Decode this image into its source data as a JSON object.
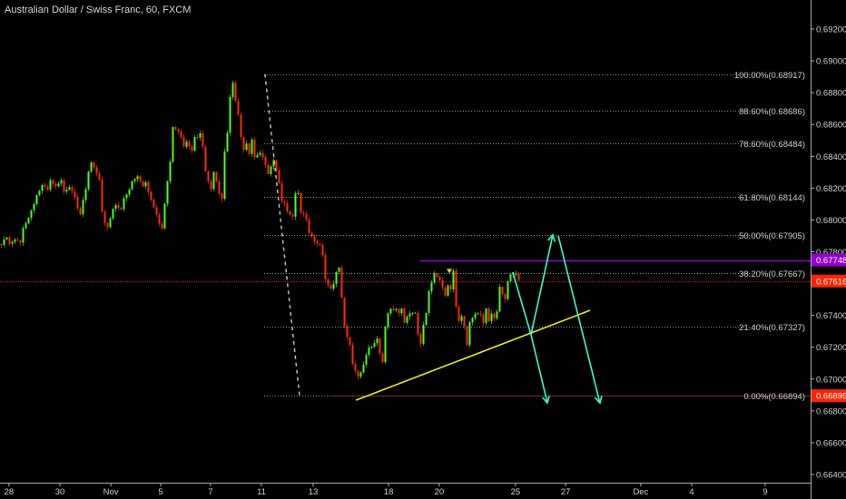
{
  "header": {
    "title": "Australian Dollar / Swiss Franc, 60, FXCM"
  },
  "colors": {
    "background": "#000000",
    "up": "#4cff1a",
    "down": "#ff2a00",
    "axis": "#b0b0b0",
    "axis_text": "#d0d0d0",
    "fib": "#8c8c8c",
    "current_price": "#ff2200",
    "resistance": "#9500d0",
    "trendline": "#f2f200",
    "projection": "#33ffc4",
    "dashed_swing": "#bdbdbd"
  },
  "chart_data": {
    "type": "candlestick",
    "symbol": "Australian Dollar / Swiss Franc",
    "interval": "60",
    "source": "FXCM",
    "y_range": [
      0.6634,
      0.6937
    ],
    "bar_range": [
      0,
      296
    ],
    "y_ticks": [
      "0.69200",
      "0.69000",
      "0.68800",
      "0.68600",
      "0.68400",
      "0.68200",
      "0.68000",
      "0.67800",
      "0.67400",
      "0.67200",
      "0.67000",
      "0.66800",
      "0.66600",
      "0.66400"
    ],
    "x_ticks": [
      {
        "label": "28",
        "bar": 3.3
      },
      {
        "label": "30",
        "bar": 22
      },
      {
        "label": "Nov",
        "bar": 40.7
      },
      {
        "label": "5",
        "bar": 59
      },
      {
        "label": "7",
        "bar": 77.3
      },
      {
        "label": "11",
        "bar": 96
      },
      {
        "label": "13",
        "bar": 115
      },
      {
        "label": "18",
        "bar": 142.7
      },
      {
        "label": "20",
        "bar": 161.3
      },
      {
        "label": "25",
        "bar": 189.3
      },
      {
        "label": "27",
        "bar": 207.7
      },
      {
        "label": "Dec",
        "bar": 235.3
      },
      {
        "label": "4",
        "bar": 254
      },
      {
        "label": "9",
        "bar": 281
      }
    ],
    "price_path": {
      "bars": [
        0,
        2,
        3,
        5,
        7,
        8,
        10,
        13,
        15,
        17,
        18,
        20,
        22,
        23,
        25,
        27,
        28,
        29,
        31,
        32,
        33,
        34,
        36,
        37,
        38,
        39,
        41,
        42,
        44,
        45,
        47,
        48,
        50,
        52,
        53,
        55,
        57,
        58,
        59,
        61,
        62,
        63,
        65,
        67,
        68,
        70,
        71,
        72,
        73,
        74,
        75,
        77,
        78,
        79,
        80,
        81,
        82,
        83,
        84,
        85,
        86,
        87,
        88,
        89,
        90,
        91,
        92,
        93,
        95,
        97,
        98,
        100,
        102,
        103,
        104,
        105,
        107,
        108,
        109,
        110,
        112,
        113,
        115,
        117,
        118,
        119,
        121,
        122,
        123,
        124,
        125,
        126,
        127,
        128,
        129,
        131,
        132,
        133,
        135,
        137,
        138,
        139,
        140,
        141,
        142,
        143,
        145,
        146,
        147,
        148,
        149,
        151,
        152,
        153,
        154,
        155,
        156,
        157,
        158,
        159,
        160,
        161,
        162,
        163,
        164,
        165,
        166,
        167,
        168,
        169,
        170,
        171,
        172,
        173,
        174,
        176,
        177,
        178,
        179,
        180,
        181,
        182,
        183,
        185,
        186,
        187,
        189,
        190
      ],
      "closes": [
        0.67843,
        0.67889,
        0.67843,
        0.67872,
        0.67855,
        0.67957,
        0.68014,
        0.68157,
        0.68214,
        0.68185,
        0.68242,
        0.68202,
        0.68242,
        0.68185,
        0.68214,
        0.68157,
        0.68083,
        0.68043,
        0.68185,
        0.68299,
        0.68356,
        0.68328,
        0.68242,
        0.68043,
        0.67986,
        0.67957,
        0.68071,
        0.681,
        0.68071,
        0.68128,
        0.68185,
        0.68242,
        0.68271,
        0.68214,
        0.68242,
        0.68128,
        0.68043,
        0.67986,
        0.67957,
        0.68242,
        0.68356,
        0.68584,
        0.68556,
        0.6847,
        0.68499,
        0.68442,
        0.68527,
        0.68527,
        0.68556,
        0.6847,
        0.68299,
        0.68185,
        0.68299,
        0.68242,
        0.68157,
        0.68128,
        0.68442,
        0.68556,
        0.68784,
        0.68869,
        0.68755,
        0.6867,
        0.68527,
        0.68442,
        0.6847,
        0.68413,
        0.68499,
        0.68385,
        0.68413,
        0.68356,
        0.68299,
        0.68385,
        0.68242,
        0.68128,
        0.681,
        0.68043,
        0.68014,
        0.68157,
        0.68157,
        0.68043,
        0.68014,
        0.67929,
        0.67872,
        0.67843,
        0.67786,
        0.67615,
        0.67558,
        0.67587,
        0.67672,
        0.67701,
        0.67501,
        0.6733,
        0.67273,
        0.67216,
        0.67102,
        0.67017,
        0.67045,
        0.67102,
        0.67188,
        0.67216,
        0.67245,
        0.67159,
        0.67102,
        0.6733,
        0.67416,
        0.67444,
        0.67444,
        0.67416,
        0.67444,
        0.67359,
        0.67387,
        0.67416,
        0.67416,
        0.67273,
        0.67216,
        0.6733,
        0.67416,
        0.67558,
        0.67615,
        0.67672,
        0.67644,
        0.67627,
        0.67587,
        0.6753,
        0.67587,
        0.67558,
        0.67672,
        0.67444,
        0.67359,
        0.67387,
        0.6733,
        0.67216,
        0.67359,
        0.67387,
        0.67416,
        0.67416,
        0.67359,
        0.67444,
        0.67359,
        0.67399,
        0.67376,
        0.67416,
        0.6757,
        0.67501,
        0.67615,
        0.67661,
        0.67672,
        0.67627
      ]
    },
    "fib_retracement": {
      "start_bar": 97,
      "levels": [
        {
          "label": "100.00%(0.68917)",
          "price": 0.68917
        },
        {
          "label": "88.60%(0.68686)",
          "price": 0.68686
        },
        {
          "label": "78.60%(0.68484)",
          "price": 0.68484
        },
        {
          "label": "61.80%(0.68144)",
          "price": 0.68144
        },
        {
          "label": "50.00%(0.67905)",
          "price": 0.67905
        },
        {
          "label": "38.20%(0.67667)",
          "price": 0.67667
        },
        {
          "label": "21.40%(0.67327)",
          "price": 0.67327
        },
        {
          "label": "0.00%(0.66894)",
          "price": 0.66894
        }
      ]
    },
    "price_labels": [
      {
        "label": "0.67748",
        "price": 0.67748,
        "color": "#9500d0"
      },
      {
        "label": "0.67616",
        "price": 0.67616,
        "color": "#ff2200"
      },
      {
        "label": "0.66895",
        "price": 0.66895,
        "color": "#ff2200"
      }
    ],
    "horizontal_lines": [
      {
        "name": "current-price-line",
        "price": 0.67616,
        "from_bar": 0,
        "style": "dotted",
        "color": "#b01800"
      },
      {
        "name": "resistance-line",
        "price": 0.67748,
        "from_bar": 154.3,
        "style": "solid",
        "color": "#9500d0"
      }
    ],
    "drawings": [
      {
        "name": "fib-swing-dashed-line",
        "style": "dashed",
        "color": "#bdbdbd",
        "points": [
          [
            97.3,
            0.68917
          ],
          [
            110,
            0.66894
          ]
        ]
      },
      {
        "name": "ascending-trendline",
        "style": "solid",
        "color": "#f2f200",
        "points": [
          [
            130.7,
            0.66867
          ],
          [
            216.7,
            0.67432
          ]
        ]
      },
      {
        "name": "projection-up-arrow",
        "style": "arrow",
        "color": "#33ffc4",
        "points": [
          [
            188.3,
            0.67672
          ],
          [
            195,
            0.67279
          ],
          [
            203,
            0.67906
          ]
        ]
      },
      {
        "name": "projection-down-arrow-1",
        "style": "arrow",
        "color": "#33ffc4",
        "points": [
          [
            195,
            0.67279
          ],
          [
            201,
            0.6685
          ]
        ]
      },
      {
        "name": "projection-down-arrow-2",
        "style": "arrow",
        "color": "#33ffc4",
        "points": [
          [
            205,
            0.679
          ],
          [
            220.3,
            0.6685
          ]
        ]
      }
    ],
    "markers": [
      {
        "name": "down-triangle-marker",
        "bar": 165,
        "price": 0.67675,
        "color": "#f2d200"
      }
    ]
  }
}
